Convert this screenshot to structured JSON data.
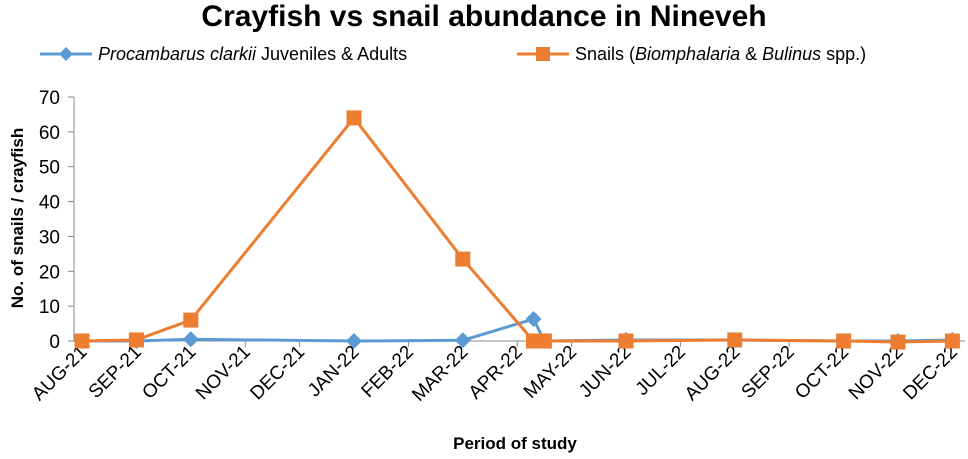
{
  "chart_data": {
    "type": "line",
    "title": "Crayfish vs snail abundance in Nineveh",
    "xlabel": "Period of study",
    "ylabel": "No. of snails / crayfish",
    "ylim": [
      0,
      70
    ],
    "yticks": [
      "0",
      "10",
      "20",
      "30",
      "40",
      "50",
      "60",
      "70"
    ],
    "categories": [
      "AUG-21",
      "SEP-21",
      "OCT-21",
      "NOV-21",
      "DEC-21",
      "JAN-22",
      "FEB-22",
      "MAR-22",
      "APR-22",
      "MAY-22",
      "JUN-22",
      "JUL-22",
      "AUG-22",
      "SEP-22",
      "OCT-22",
      "NOV-22",
      "DEC-22"
    ],
    "grid": false,
    "legend_position": "top",
    "series": [
      {
        "name": "Procambarus clarkii Juveniles & Adults",
        "name_italic": "Procambarus clarkii",
        "name_rest": " Juveniles & Adults",
        "color": "#5b9bd5",
        "marker": "diamond",
        "points": [
          {
            "x": 0,
            "y": 0
          },
          {
            "x": 1,
            "y": 0
          },
          {
            "x": 2,
            "y": 0.5
          },
          {
            "x": 5,
            "y": 0
          },
          {
            "x": 7,
            "y": 0.2
          },
          {
            "x": 8.3,
            "y": 6.3
          },
          {
            "x": 8.5,
            "y": 0
          },
          {
            "x": 10,
            "y": 0.3
          },
          {
            "x": 12,
            "y": 0.3
          },
          {
            "x": 14,
            "y": 0
          },
          {
            "x": 15,
            "y": 0
          },
          {
            "x": 16,
            "y": 0.3
          }
        ]
      },
      {
        "name": "Snails (Biomphalaria & Bulinus spp.)",
        "name_parts": [
          "Snails (",
          "Biomphalaria",
          " & ",
          "Bulinus",
          " spp.)"
        ],
        "color": "#ed7d31",
        "marker": "square",
        "points": [
          {
            "x": 0,
            "y": 0
          },
          {
            "x": 1,
            "y": 0.3
          },
          {
            "x": 2,
            "y": 6
          },
          {
            "x": 5,
            "y": 64
          },
          {
            "x": 7,
            "y": 23.5
          },
          {
            "x": 8.3,
            "y": 0
          },
          {
            "x": 8.5,
            "y": 0
          },
          {
            "x": 10,
            "y": 0
          },
          {
            "x": 12,
            "y": 0.3
          },
          {
            "x": 14,
            "y": 0
          },
          {
            "x": 15,
            "y": -0.3
          },
          {
            "x": 16,
            "y": 0
          }
        ]
      }
    ]
  }
}
